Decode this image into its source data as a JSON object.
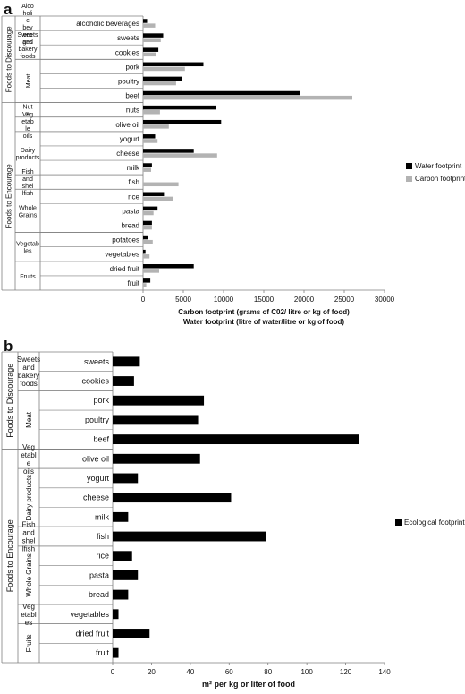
{
  "colors": {
    "water": "#000000",
    "carbon": "#b3b3b3",
    "ecological": "#000000",
    "axis": "#7f7f7f"
  },
  "chart_data": [
    {
      "panel": "a",
      "type": "bar",
      "orientation": "horizontal",
      "categories": [
        "alcoholic beverages",
        "sweets",
        "cookies",
        "pork",
        "poultry",
        "beef",
        "nuts",
        "olive oil",
        "yogurt",
        "cheese",
        "milk",
        "fish",
        "rice",
        "pasta",
        "bread",
        "potatoes",
        "vegetables",
        "dried fruit",
        "fruit"
      ],
      "series": [
        {
          "name": "Water footprint",
          "values": [
            500,
            2500,
            1900,
            7500,
            4800,
            19500,
            9100,
            9700,
            1500,
            6300,
            1100,
            0,
            2600,
            1800,
            1100,
            600,
            300,
            6300,
            900
          ]
        },
        {
          "name": "Carbon footprint",
          "values": [
            1500,
            2200,
            1600,
            5200,
            4100,
            26000,
            2100,
            3200,
            1800,
            9200,
            1000,
            4400,
            3700,
            1300,
            1100,
            1200,
            800,
            2000,
            400
          ]
        }
      ],
      "groups": [
        {
          "label": "Alco holi c bev era ges",
          "lines": [
            "Alco",
            "holi",
            "c",
            "bev",
            "era",
            "ges"
          ],
          "start": 0,
          "end": 0
        },
        {
          "label": "Sweets and bakery foods",
          "lines": [
            "Sweets",
            "and",
            "bakery",
            "foods"
          ],
          "start": 1,
          "end": 2
        },
        {
          "label": "Meat",
          "lines": [
            "Meat"
          ],
          "start": 3,
          "end": 5
        },
        {
          "label": "Nut s",
          "lines": [
            "Nut",
            "s"
          ],
          "start": 6,
          "end": 6
        },
        {
          "label": "Veg etab le oils",
          "lines": [
            "Veg",
            "etab",
            "le",
            "oils"
          ],
          "start": 7,
          "end": 7
        },
        {
          "label": "Dairy products",
          "lines": [
            "Dairy",
            "products"
          ],
          "start": 8,
          "end": 10
        },
        {
          "label": "Fish and shel lfish",
          "lines": [
            "Fish",
            "and",
            "shel",
            "lfish"
          ],
          "start": 11,
          "end": 11
        },
        {
          "label": "Whole Grains",
          "lines": [
            "Whole",
            "Grains"
          ],
          "start": 12,
          "end": 14
        },
        {
          "label": "Vegetab les",
          "lines": [
            "Vegetab",
            "les"
          ],
          "start": 15,
          "end": 16
        },
        {
          "label": "Fruits",
          "lines": [
            "Fruits"
          ],
          "start": 17,
          "end": 18
        }
      ],
      "sections": [
        {
          "label": "Foods to Discourage",
          "start": 0,
          "end": 5
        },
        {
          "label": "Foods to Encourage",
          "start": 6,
          "end": 18
        }
      ],
      "xlim": [
        0,
        30000
      ],
      "xticks": [
        0,
        5000,
        10000,
        15000,
        20000,
        25000,
        30000
      ],
      "xlabel_lines": [
        "Carbon footprint (grams of C02/ litre or kg of food)",
        "Water footprint (litre of water/litre or kg of food)"
      ],
      "legend_position": "right"
    },
    {
      "panel": "b",
      "type": "bar",
      "orientation": "horizontal",
      "categories": [
        "sweets",
        "cookies",
        "pork",
        "poultry",
        "beef",
        "olive oil",
        "yogurt",
        "cheese",
        "milk",
        "fish",
        "rice",
        "pasta",
        "bread",
        "vegetables",
        "dried fruit",
        "fruit"
      ],
      "series": [
        {
          "name": "Ecological footprint",
          "values": [
            14,
            11,
            47,
            44,
            127,
            45,
            13,
            61,
            8,
            79,
            10,
            13,
            8,
            3,
            19,
            3
          ]
        }
      ],
      "groups": [
        {
          "label": "Sweets and bakery foods",
          "lines": [
            "Sweets",
            "and",
            "bakery",
            "foods"
          ],
          "start": 0,
          "end": 1
        },
        {
          "label": "Meat",
          "lines": [
            "Meat"
          ],
          "start": 2,
          "end": 4
        },
        {
          "label": "Veg etabl e oils",
          "lines": [
            "Veg",
            "etabl",
            "e",
            "oils"
          ],
          "start": 5,
          "end": 5
        },
        {
          "label": "Dairy products",
          "lines": [
            "Dairy products"
          ],
          "start": 6,
          "end": 8
        },
        {
          "label": "Fish and shel lfish",
          "lines": [
            "Fish",
            "and",
            "shel",
            "lfish"
          ],
          "start": 9,
          "end": 9
        },
        {
          "label": "Whole Grains",
          "lines": [
            "Whole Grains"
          ],
          "start": 10,
          "end": 12
        },
        {
          "label": "Veg etabl es",
          "lines": [
            "Veg",
            "etabl",
            "es"
          ],
          "start": 13,
          "end": 13
        },
        {
          "label": "Fruits",
          "lines": [
            "Fruits"
          ],
          "start": 14,
          "end": 15
        }
      ],
      "sections": [
        {
          "label": "Foods to Discourage",
          "start": 0,
          "end": 4
        },
        {
          "label": "Foods to Encourage",
          "start": 5,
          "end": 15
        }
      ],
      "xlim": [
        0,
        140
      ],
      "xticks": [
        0,
        20,
        40,
        60,
        80,
        100,
        120,
        140
      ],
      "xlabel_lines": [
        "m² per kg or liter of food"
      ],
      "legend_position": "right"
    }
  ]
}
